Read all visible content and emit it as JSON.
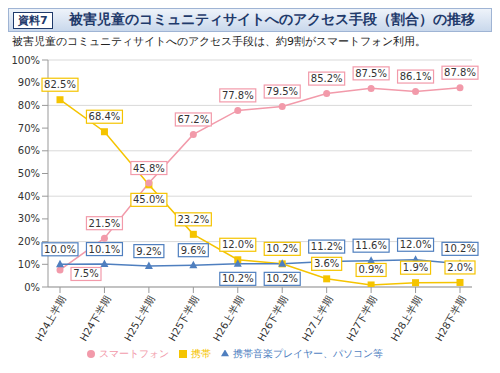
{
  "chart_data": {
    "type": "line",
    "title": "被害児童のコミュニティサイトへのアクセス手段（割合）の推移",
    "subtitle": "被害児童のコミュニティサイトへのアクセス手段は、約9割がスマートフォン利用。",
    "annotations": [
      "資料7"
    ],
    "categories": [
      "H24上半期",
      "H24下半期",
      "H25上半期",
      "H25下半期",
      "H26上半期",
      "H26下半期",
      "H27上半期",
      "H27下半期",
      "H28上半期",
      "H28下半期"
    ],
    "series": [
      {
        "name": "携帯",
        "color": "#f5c400",
        "marker": "square",
        "values": [
          82.5,
          68.4,
          45.0,
          23.2,
          12.0,
          10.2,
          3.6,
          0.9,
          1.9,
          2.0
        ],
        "value_labels": [
          "82.5%",
          "68.4%",
          "45.0%",
          "23.2%",
          "12.0%",
          "10.2%",
          "3.6%",
          "0.9%",
          "1.9%",
          "2.0%"
        ]
      },
      {
        "name": "スマートフォン",
        "color": "#f29aaa",
        "marker": "circle",
        "values": [
          7.5,
          21.5,
          45.8,
          67.2,
          77.8,
          79.5,
          85.2,
          87.5,
          86.1,
          87.8
        ],
        "value_labels": [
          "7.5%",
          "21.5%",
          "45.8%",
          "67.2%",
          "77.8%",
          "79.5%",
          "85.2%",
          "87.5%",
          "86.1%",
          "87.8%"
        ]
      },
      {
        "name": "携帯音楽プレイヤー、パソコン等",
        "color": "#4f7fbf",
        "marker": "triangle",
        "values": [
          10.0,
          10.1,
          9.2,
          9.6,
          10.2,
          10.2,
          11.2,
          11.6,
          12.0,
          10.2
        ],
        "value_labels": [
          "10.0%",
          "10.1%",
          "9.2%",
          "9.6%",
          "10.2%",
          "10.2%",
          "11.2%",
          "11.6%",
          "12.0%",
          "10.2%"
        ]
      }
    ],
    "ylim": [
      0,
      100
    ],
    "yticks": [
      {
        "value": 0,
        "label": "0%"
      },
      {
        "value": 10,
        "label": "10%"
      },
      {
        "value": 20,
        "label": "20%"
      },
      {
        "value": 30,
        "label": "30%"
      },
      {
        "value": 40,
        "label": "40%"
      },
      {
        "value": 50,
        "label": "50%"
      },
      {
        "value": 60,
        "label": "60%"
      },
      {
        "value": 70,
        "label": "70%"
      },
      {
        "value": 80,
        "label": "80%"
      },
      {
        "value": 90,
        "label": "90%"
      },
      {
        "value": 100,
        "label": "100%"
      }
    ],
    "grid": true,
    "legend": "bottom",
    "data_labels": true
  }
}
